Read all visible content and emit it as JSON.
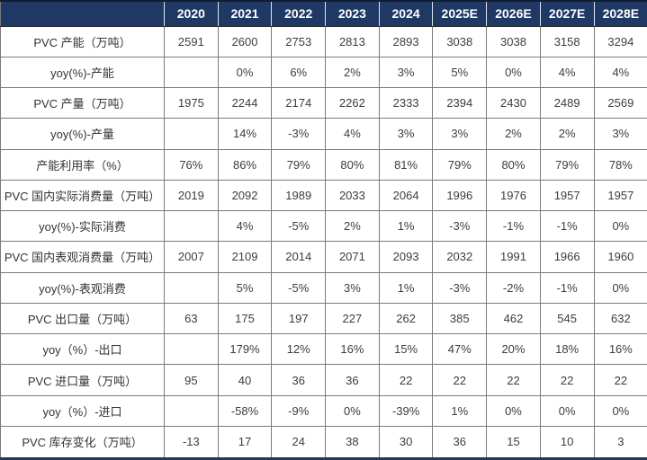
{
  "chart_data": {
    "type": "table",
    "title": "",
    "columns": [
      "",
      "2020",
      "2021",
      "2022",
      "2023",
      "2024",
      "2025E",
      "2026E",
      "2027E",
      "2028E"
    ],
    "rows": [
      {
        "label": "PVC 产能（万吨）",
        "values": [
          "2591",
          "2600",
          "2753",
          "2813",
          "2893",
          "3038",
          "3038",
          "3158",
          "3294"
        ]
      },
      {
        "label": "yoy(%)-产能",
        "values": [
          "",
          "0%",
          "6%",
          "2%",
          "3%",
          "5%",
          "0%",
          "4%",
          "4%"
        ]
      },
      {
        "label": "PVC 产量（万吨）",
        "values": [
          "1975",
          "2244",
          "2174",
          "2262",
          "2333",
          "2394",
          "2430",
          "2489",
          "2569"
        ]
      },
      {
        "label": "yoy(%)-产量",
        "values": [
          "",
          "14%",
          "-3%",
          "4%",
          "3%",
          "3%",
          "2%",
          "2%",
          "3%"
        ]
      },
      {
        "label": "产能利用率（%）",
        "values": [
          "76%",
          "86%",
          "79%",
          "80%",
          "81%",
          "79%",
          "80%",
          "79%",
          "78%"
        ]
      },
      {
        "label": "PVC 国内实际消费量（万吨）",
        "values": [
          "2019",
          "2092",
          "1989",
          "2033",
          "2064",
          "1996",
          "1976",
          "1957",
          "1957"
        ]
      },
      {
        "label": "yoy(%)-实际消费",
        "values": [
          "",
          "4%",
          "-5%",
          "2%",
          "1%",
          "-3%",
          "-1%",
          "-1%",
          "0%"
        ]
      },
      {
        "label": "PVC 国内表观消费量（万吨）",
        "values": [
          "2007",
          "2109",
          "2014",
          "2071",
          "2093",
          "2032",
          "1991",
          "1966",
          "1960"
        ]
      },
      {
        "label": "yoy(%)-表观消费",
        "values": [
          "",
          "5%",
          "-5%",
          "3%",
          "1%",
          "-3%",
          "-2%",
          "-1%",
          "0%"
        ]
      },
      {
        "label": "PVC 出口量（万吨）",
        "values": [
          "63",
          "175",
          "197",
          "227",
          "262",
          "385",
          "462",
          "545",
          "632"
        ]
      },
      {
        "label": "yoy（%）-出口",
        "values": [
          "",
          "179%",
          "12%",
          "16%",
          "15%",
          "47%",
          "20%",
          "18%",
          "16%"
        ]
      },
      {
        "label": "PVC 进口量（万吨）",
        "values": [
          "95",
          "40",
          "36",
          "36",
          "22",
          "22",
          "22",
          "22",
          "22"
        ]
      },
      {
        "label": "yoy（%）-进口",
        "values": [
          "",
          "-58%",
          "-9%",
          "0%",
          "-39%",
          "1%",
          "0%",
          "0%",
          "0%"
        ]
      },
      {
        "label": "PVC 库存变化（万吨）",
        "values": [
          "-13",
          "17",
          "24",
          "38",
          "30",
          "36",
          "15",
          "10",
          "3"
        ]
      }
    ],
    "colors": {
      "header_bg": "#1F3864",
      "header_text": "#FFFFFF",
      "grid_line": "#7A7A7A",
      "body_text": "#3D3D3D",
      "bottom_border": "#1F3864"
    }
  }
}
